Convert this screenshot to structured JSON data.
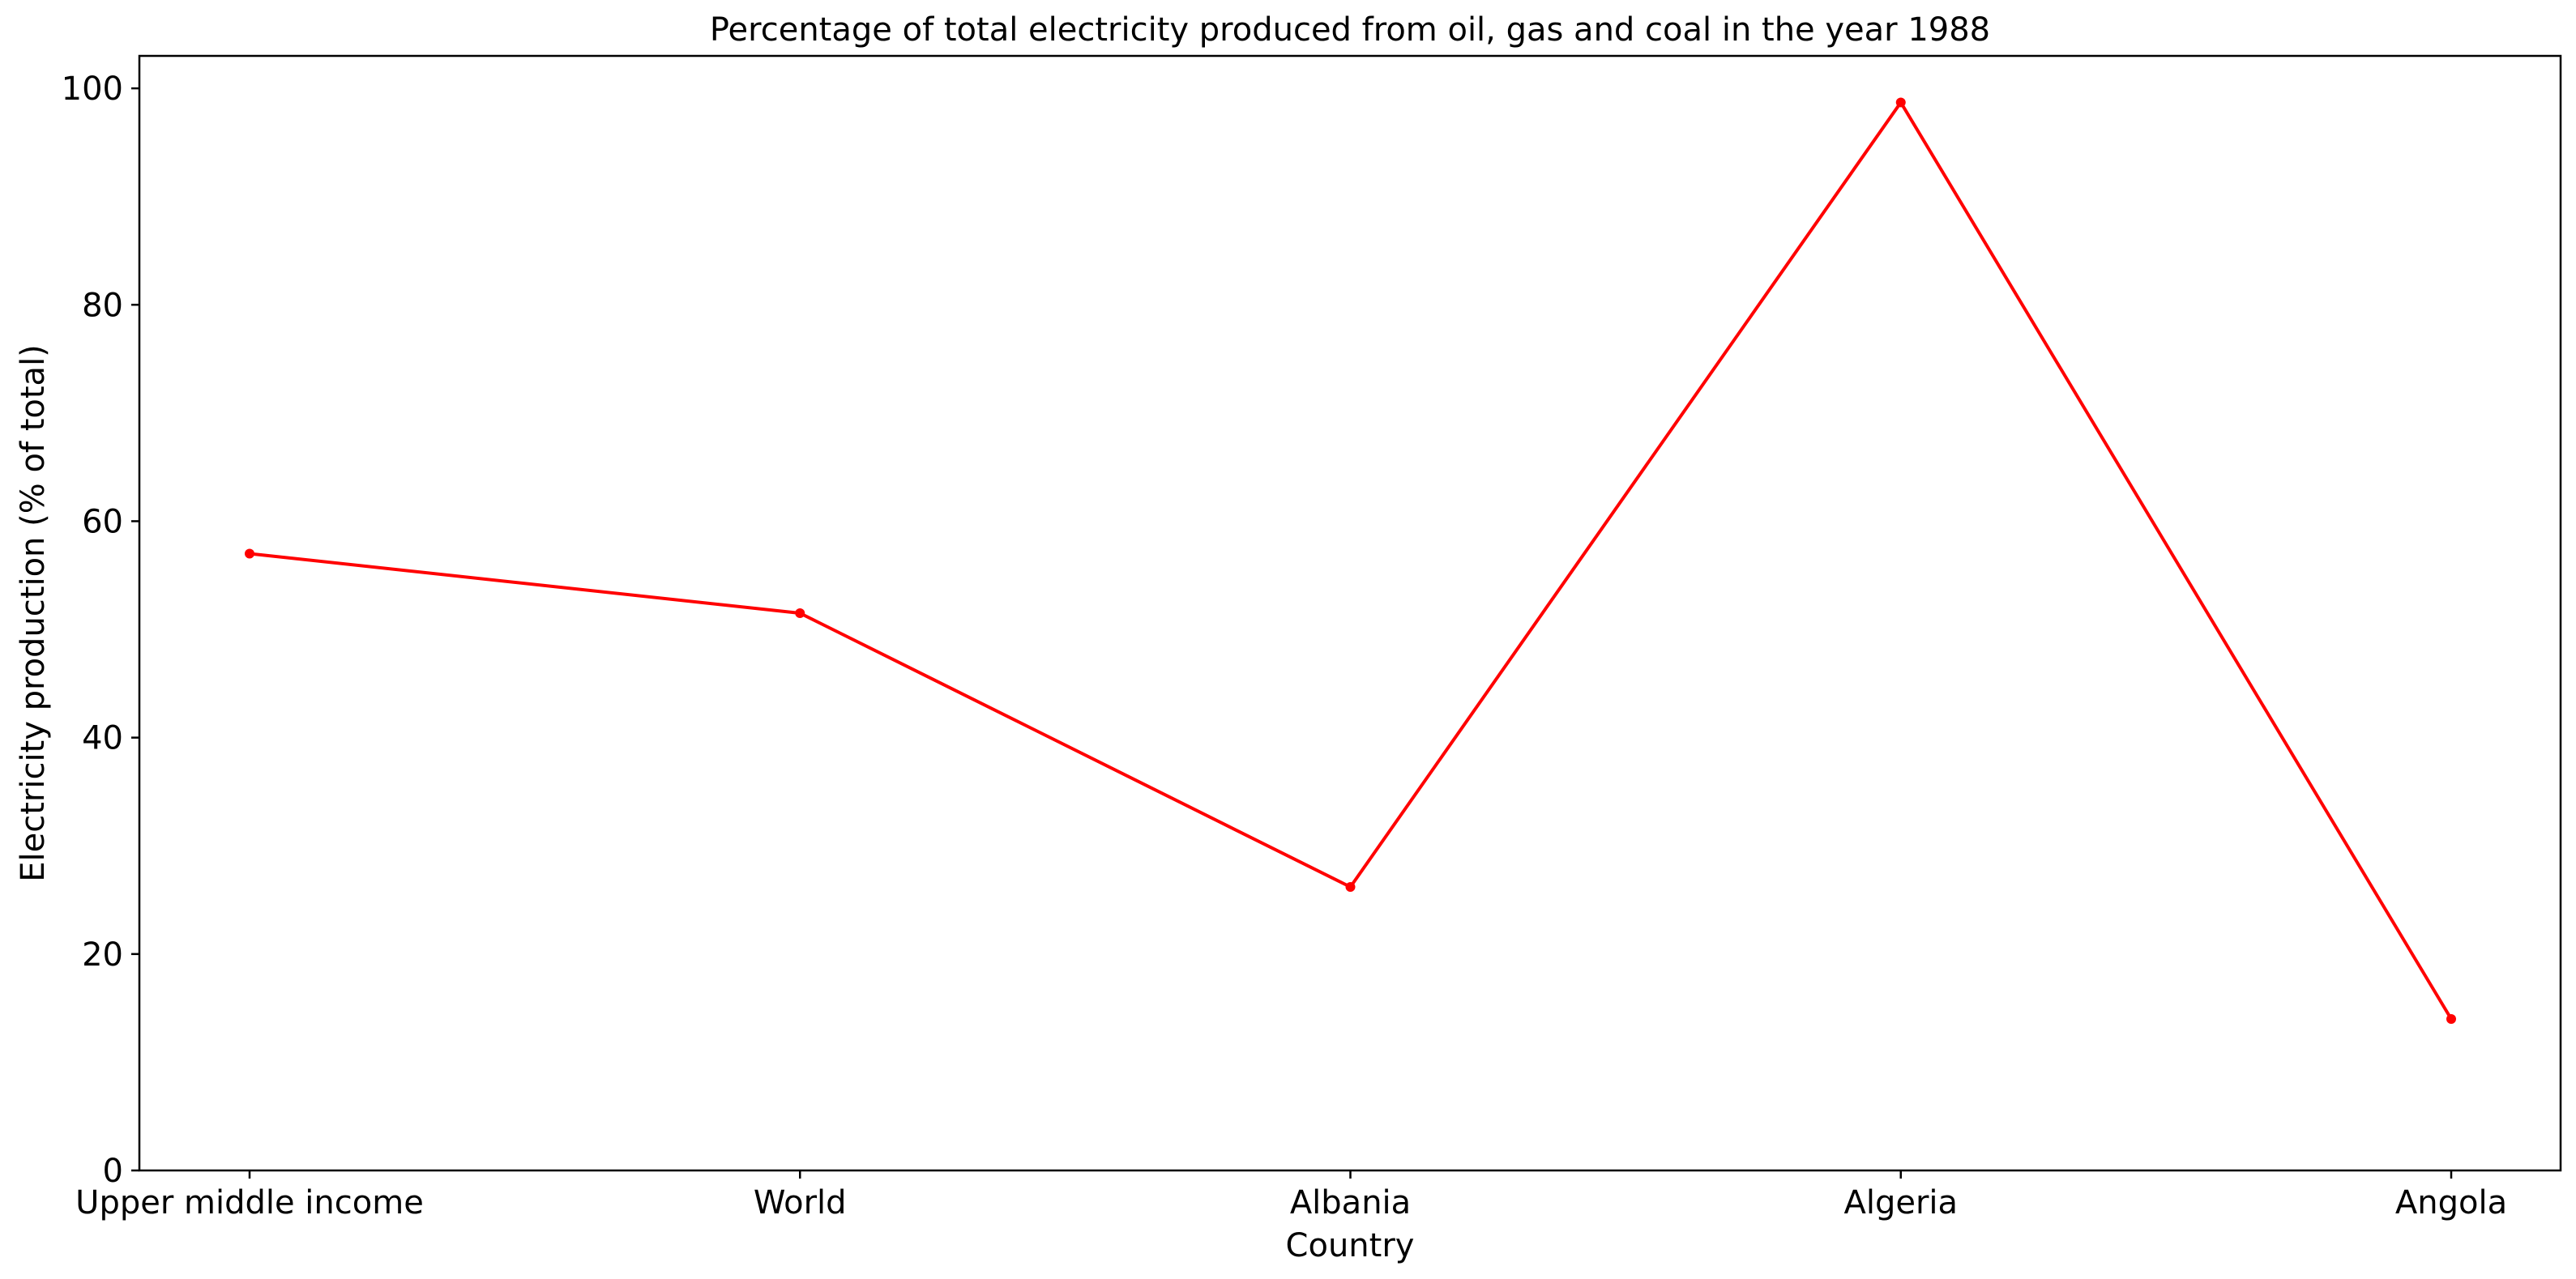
{
  "chart_data": {
    "type": "line",
    "title": "Percentage of total electricity produced from oil, gas and coal in the year 1988",
    "xlabel": "Country",
    "ylabel": "Electricity production (% of total)",
    "categories": [
      "Upper middle income",
      "World",
      "Albania",
      "Algeria",
      "Angola"
    ],
    "series": [
      {
        "values": [
          57.0,
          51.5,
          26.2,
          98.7,
          14.0
        ],
        "color": "#ff0000"
      }
    ],
    "ylim": [
      0,
      103
    ],
    "yticks": [
      0,
      20,
      40,
      60,
      80,
      100
    ],
    "yticklabels": [
      "0",
      "20",
      "40",
      "60",
      "80",
      "100"
    ],
    "grid": false,
    "legend": "none"
  }
}
